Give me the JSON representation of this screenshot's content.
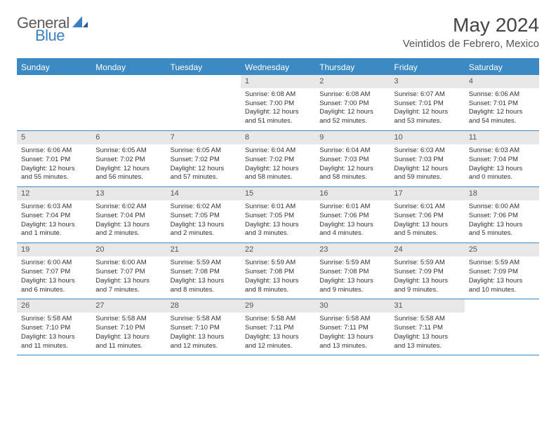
{
  "logo": {
    "general": "General",
    "blue": "Blue"
  },
  "title": "May 2024",
  "location": "Veintidos de Febrero, Mexico",
  "colors": {
    "header_bg": "#3b8ac4",
    "header_text": "#ffffff",
    "daynum_bg": "#e8e8e8",
    "logo_gray": "#5a5a5a",
    "logo_blue": "#3b7fc4"
  },
  "typography": {
    "title_fontsize": 28,
    "location_fontsize": 15,
    "dayheader_fontsize": 12,
    "body_fontsize": 9.5
  },
  "day_headers": [
    "Sunday",
    "Monday",
    "Tuesday",
    "Wednesday",
    "Thursday",
    "Friday",
    "Saturday"
  ],
  "weeks": [
    [
      {
        "n": "",
        "sr": "",
        "ss": "",
        "dl": ""
      },
      {
        "n": "",
        "sr": "",
        "ss": "",
        "dl": ""
      },
      {
        "n": "",
        "sr": "",
        "ss": "",
        "dl": ""
      },
      {
        "n": "1",
        "sr": "Sunrise: 6:08 AM",
        "ss": "Sunset: 7:00 PM",
        "dl": "Daylight: 12 hours and 51 minutes."
      },
      {
        "n": "2",
        "sr": "Sunrise: 6:08 AM",
        "ss": "Sunset: 7:00 PM",
        "dl": "Daylight: 12 hours and 52 minutes."
      },
      {
        "n": "3",
        "sr": "Sunrise: 6:07 AM",
        "ss": "Sunset: 7:01 PM",
        "dl": "Daylight: 12 hours and 53 minutes."
      },
      {
        "n": "4",
        "sr": "Sunrise: 6:06 AM",
        "ss": "Sunset: 7:01 PM",
        "dl": "Daylight: 12 hours and 54 minutes."
      }
    ],
    [
      {
        "n": "5",
        "sr": "Sunrise: 6:06 AM",
        "ss": "Sunset: 7:01 PM",
        "dl": "Daylight: 12 hours and 55 minutes."
      },
      {
        "n": "6",
        "sr": "Sunrise: 6:05 AM",
        "ss": "Sunset: 7:02 PM",
        "dl": "Daylight: 12 hours and 56 minutes."
      },
      {
        "n": "7",
        "sr": "Sunrise: 6:05 AM",
        "ss": "Sunset: 7:02 PM",
        "dl": "Daylight: 12 hours and 57 minutes."
      },
      {
        "n": "8",
        "sr": "Sunrise: 6:04 AM",
        "ss": "Sunset: 7:02 PM",
        "dl": "Daylight: 12 hours and 58 minutes."
      },
      {
        "n": "9",
        "sr": "Sunrise: 6:04 AM",
        "ss": "Sunset: 7:03 PM",
        "dl": "Daylight: 12 hours and 58 minutes."
      },
      {
        "n": "10",
        "sr": "Sunrise: 6:03 AM",
        "ss": "Sunset: 7:03 PM",
        "dl": "Daylight: 12 hours and 59 minutes."
      },
      {
        "n": "11",
        "sr": "Sunrise: 6:03 AM",
        "ss": "Sunset: 7:04 PM",
        "dl": "Daylight: 13 hours and 0 minutes."
      }
    ],
    [
      {
        "n": "12",
        "sr": "Sunrise: 6:03 AM",
        "ss": "Sunset: 7:04 PM",
        "dl": "Daylight: 13 hours and 1 minute."
      },
      {
        "n": "13",
        "sr": "Sunrise: 6:02 AM",
        "ss": "Sunset: 7:04 PM",
        "dl": "Daylight: 13 hours and 2 minutes."
      },
      {
        "n": "14",
        "sr": "Sunrise: 6:02 AM",
        "ss": "Sunset: 7:05 PM",
        "dl": "Daylight: 13 hours and 2 minutes."
      },
      {
        "n": "15",
        "sr": "Sunrise: 6:01 AM",
        "ss": "Sunset: 7:05 PM",
        "dl": "Daylight: 13 hours and 3 minutes."
      },
      {
        "n": "16",
        "sr": "Sunrise: 6:01 AM",
        "ss": "Sunset: 7:06 PM",
        "dl": "Daylight: 13 hours and 4 minutes."
      },
      {
        "n": "17",
        "sr": "Sunrise: 6:01 AM",
        "ss": "Sunset: 7:06 PM",
        "dl": "Daylight: 13 hours and 5 minutes."
      },
      {
        "n": "18",
        "sr": "Sunrise: 6:00 AM",
        "ss": "Sunset: 7:06 PM",
        "dl": "Daylight: 13 hours and 5 minutes."
      }
    ],
    [
      {
        "n": "19",
        "sr": "Sunrise: 6:00 AM",
        "ss": "Sunset: 7:07 PM",
        "dl": "Daylight: 13 hours and 6 minutes."
      },
      {
        "n": "20",
        "sr": "Sunrise: 6:00 AM",
        "ss": "Sunset: 7:07 PM",
        "dl": "Daylight: 13 hours and 7 minutes."
      },
      {
        "n": "21",
        "sr": "Sunrise: 5:59 AM",
        "ss": "Sunset: 7:08 PM",
        "dl": "Daylight: 13 hours and 8 minutes."
      },
      {
        "n": "22",
        "sr": "Sunrise: 5:59 AM",
        "ss": "Sunset: 7:08 PM",
        "dl": "Daylight: 13 hours and 8 minutes."
      },
      {
        "n": "23",
        "sr": "Sunrise: 5:59 AM",
        "ss": "Sunset: 7:08 PM",
        "dl": "Daylight: 13 hours and 9 minutes."
      },
      {
        "n": "24",
        "sr": "Sunrise: 5:59 AM",
        "ss": "Sunset: 7:09 PM",
        "dl": "Daylight: 13 hours and 9 minutes."
      },
      {
        "n": "25",
        "sr": "Sunrise: 5:59 AM",
        "ss": "Sunset: 7:09 PM",
        "dl": "Daylight: 13 hours and 10 minutes."
      }
    ],
    [
      {
        "n": "26",
        "sr": "Sunrise: 5:58 AM",
        "ss": "Sunset: 7:10 PM",
        "dl": "Daylight: 13 hours and 11 minutes."
      },
      {
        "n": "27",
        "sr": "Sunrise: 5:58 AM",
        "ss": "Sunset: 7:10 PM",
        "dl": "Daylight: 13 hours and 11 minutes."
      },
      {
        "n": "28",
        "sr": "Sunrise: 5:58 AM",
        "ss": "Sunset: 7:10 PM",
        "dl": "Daylight: 13 hours and 12 minutes."
      },
      {
        "n": "29",
        "sr": "Sunrise: 5:58 AM",
        "ss": "Sunset: 7:11 PM",
        "dl": "Daylight: 13 hours and 12 minutes."
      },
      {
        "n": "30",
        "sr": "Sunrise: 5:58 AM",
        "ss": "Sunset: 7:11 PM",
        "dl": "Daylight: 13 hours and 13 minutes."
      },
      {
        "n": "31",
        "sr": "Sunrise: 5:58 AM",
        "ss": "Sunset: 7:11 PM",
        "dl": "Daylight: 13 hours and 13 minutes."
      },
      {
        "n": "",
        "sr": "",
        "ss": "",
        "dl": ""
      }
    ]
  ]
}
